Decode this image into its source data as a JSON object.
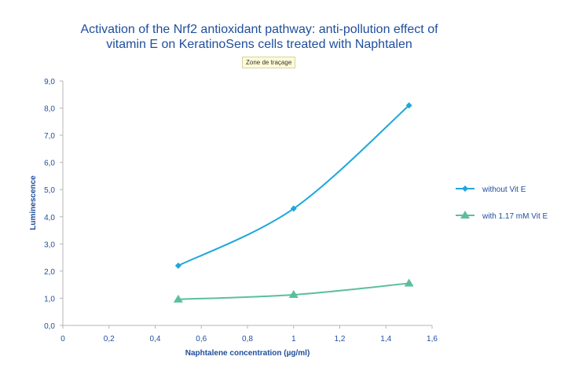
{
  "chart_data": {
    "type": "line",
    "title_lines": [
      "Activation of the Nrf2 antioxidant pathway: anti-pollution effect of",
      "vitamin E on KeratinoSens cells treated with Naphtalen"
    ],
    "tooltip": "Zone de traçage",
    "xlabel": "Naphtalene concentration (µg/ml)",
    "ylabel": "Luminescence",
    "xlim": [
      0,
      1.6
    ],
    "ylim": [
      0,
      9
    ],
    "x_ticks": [
      "0",
      "0,2",
      "0,4",
      "0,6",
      "0,8",
      "1",
      "1,2",
      "1,4",
      "1,6"
    ],
    "y_ticks": [
      "0,0",
      "1,0",
      "2,0",
      "3,0",
      "4,0",
      "5,0",
      "6,0",
      "7,0",
      "8,0",
      "9,0"
    ],
    "grid": false,
    "legend_position": "right",
    "series": [
      {
        "name": "without Vit E",
        "x": [
          0.5,
          1,
          1.5
        ],
        "values": [
          2.2,
          4.3,
          8.1
        ],
        "color": "#1ea7dd",
        "marker": "diamond"
      },
      {
        "name": "with 1.17 mM Vit E",
        "x": [
          0.5,
          1,
          1.5
        ],
        "values": [
          0.96,
          1.13,
          1.55
        ],
        "color": "#5cbf9c",
        "marker": "triangle"
      }
    ]
  }
}
